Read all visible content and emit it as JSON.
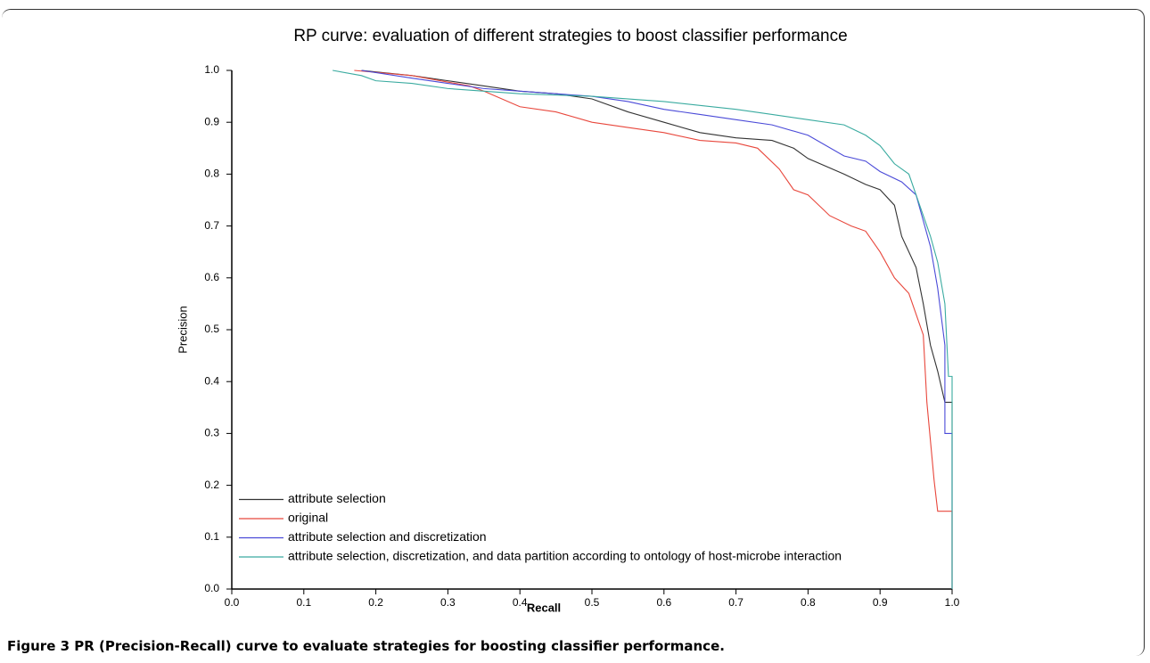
{
  "chart_data": {
    "type": "line",
    "title": "RP curve: evaluation of different strategies to boost classifier performance",
    "x_label": "Recall",
    "y_label": "Precision",
    "xlim": [
      0,
      1
    ],
    "ylim": [
      0,
      1
    ],
    "xticks": [
      {
        "value": 0,
        "label": "0.0"
      },
      0.1,
      0.2,
      0.3,
      0.4,
      0.5,
      0.6,
      0.7,
      0.8,
      0.9,
      {
        "value": 1,
        "label": "1.0"
      }
    ],
    "yticks": [
      {
        "value": 0,
        "label": "0.0"
      },
      0.1,
      0.2,
      0.3,
      0.4,
      0.5,
      0.6,
      0.7,
      0.8,
      0.9,
      {
        "value": 1,
        "label": "1.0"
      }
    ],
    "grid": false,
    "legend": "lower left",
    "series": [
      {
        "name": "attribute selection",
        "color": "#333333",
        "x": [
          0.18,
          0.25,
          0.3,
          0.35,
          0.4,
          0.45,
          0.5,
          0.55,
          0.6,
          0.65,
          0.7,
          0.75,
          0.78,
          0.8,
          0.85,
          0.88,
          0.9,
          0.92,
          0.93,
          0.95,
          0.96,
          0.97,
          0.98,
          0.99,
          1.0,
          1.0
        ],
        "values": [
          1.0,
          0.99,
          0.98,
          0.97,
          0.96,
          0.955,
          0.945,
          0.92,
          0.9,
          0.88,
          0.87,
          0.865,
          0.85,
          0.83,
          0.8,
          0.78,
          0.77,
          0.74,
          0.68,
          0.62,
          0.55,
          0.47,
          0.42,
          0.36,
          0.36,
          0.0
        ]
      },
      {
        "name": "original",
        "color": "#e8473c",
        "x": [
          0.17,
          0.25,
          0.33,
          0.35,
          0.4,
          0.45,
          0.5,
          0.55,
          0.6,
          0.65,
          0.7,
          0.73,
          0.76,
          0.78,
          0.8,
          0.83,
          0.86,
          0.88,
          0.9,
          0.92,
          0.94,
          0.96,
          0.965,
          0.975,
          0.98,
          1.0,
          1.0
        ],
        "values": [
          1.0,
          0.99,
          0.97,
          0.96,
          0.93,
          0.92,
          0.9,
          0.89,
          0.88,
          0.865,
          0.86,
          0.85,
          0.81,
          0.77,
          0.76,
          0.72,
          0.7,
          0.69,
          0.65,
          0.6,
          0.57,
          0.49,
          0.36,
          0.21,
          0.15,
          0.15,
          0.0
        ]
      },
      {
        "name": "attribute selection and discretization",
        "color": "#4a4ad8",
        "x": [
          0.18,
          0.25,
          0.3,
          0.35,
          0.4,
          0.45,
          0.5,
          0.55,
          0.6,
          0.65,
          0.7,
          0.75,
          0.8,
          0.85,
          0.88,
          0.9,
          0.93,
          0.95,
          0.96,
          0.97,
          0.98,
          0.99,
          0.99,
          1.0,
          1.0
        ],
        "values": [
          1.0,
          0.985,
          0.975,
          0.965,
          0.96,
          0.955,
          0.95,
          0.94,
          0.925,
          0.915,
          0.905,
          0.895,
          0.875,
          0.835,
          0.825,
          0.805,
          0.785,
          0.76,
          0.71,
          0.66,
          0.58,
          0.47,
          0.3,
          0.3,
          0.0
        ]
      },
      {
        "name": "attribute selection, discretization, and data partition according to ontology of host-microbe interaction",
        "color": "#3aaba0",
        "x": [
          0.14,
          0.18,
          0.2,
          0.25,
          0.3,
          0.4,
          0.5,
          0.6,
          0.7,
          0.75,
          0.8,
          0.85,
          0.88,
          0.9,
          0.92,
          0.94,
          0.95,
          0.96,
          0.97,
          0.98,
          0.99,
          0.995,
          1.0,
          1.0
        ],
        "values": [
          1.0,
          0.99,
          0.98,
          0.975,
          0.965,
          0.955,
          0.95,
          0.94,
          0.925,
          0.915,
          0.905,
          0.895,
          0.875,
          0.855,
          0.82,
          0.8,
          0.76,
          0.72,
          0.68,
          0.63,
          0.55,
          0.41,
          0.41,
          0.0
        ]
      }
    ]
  },
  "caption": {
    "label": "Figure 3",
    "text": "PR (Precision-Recall) curve to evaluate strategies for boosting classifier performance."
  }
}
